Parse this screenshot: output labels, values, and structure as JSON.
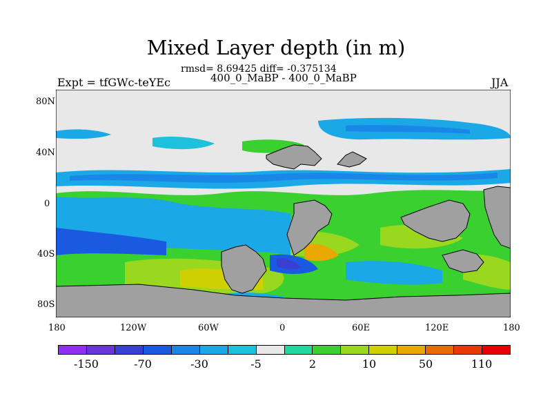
{
  "title": "Mixed Layer depth (in m)",
  "stats": "rmsd= 8.69425 diff= -0.375134",
  "experiment": "Expt = tfGWc-teYEc",
  "comparison": "400_0_MaBP - 400_0_MaBP",
  "season": "JJA",
  "y_ticks": [
    "80N",
    "40N",
    "0",
    "40S",
    "80S"
  ],
  "x_ticks": [
    "180",
    "120W",
    "60W",
    "0",
    "60E",
    "120E",
    "180"
  ],
  "colorbar": {
    "colors": [
      "#8f2ff0",
      "#6a35d8",
      "#3a3fd4",
      "#1a5ae0",
      "#1a86e8",
      "#1aa8e6",
      "#1fc0dc",
      "#e8e8e8",
      "#20d8a0",
      "#3ad030",
      "#9ad820",
      "#d0d000",
      "#e8a800",
      "#e86a00",
      "#e83a00",
      "#e80000"
    ],
    "labels": [
      "-150",
      "-70",
      "-30",
      "-5",
      "2",
      "10",
      "50",
      "110"
    ]
  },
  "map": {
    "land_color": "#a0a0a0",
    "nodata_color": "#e8e8e8"
  }
}
